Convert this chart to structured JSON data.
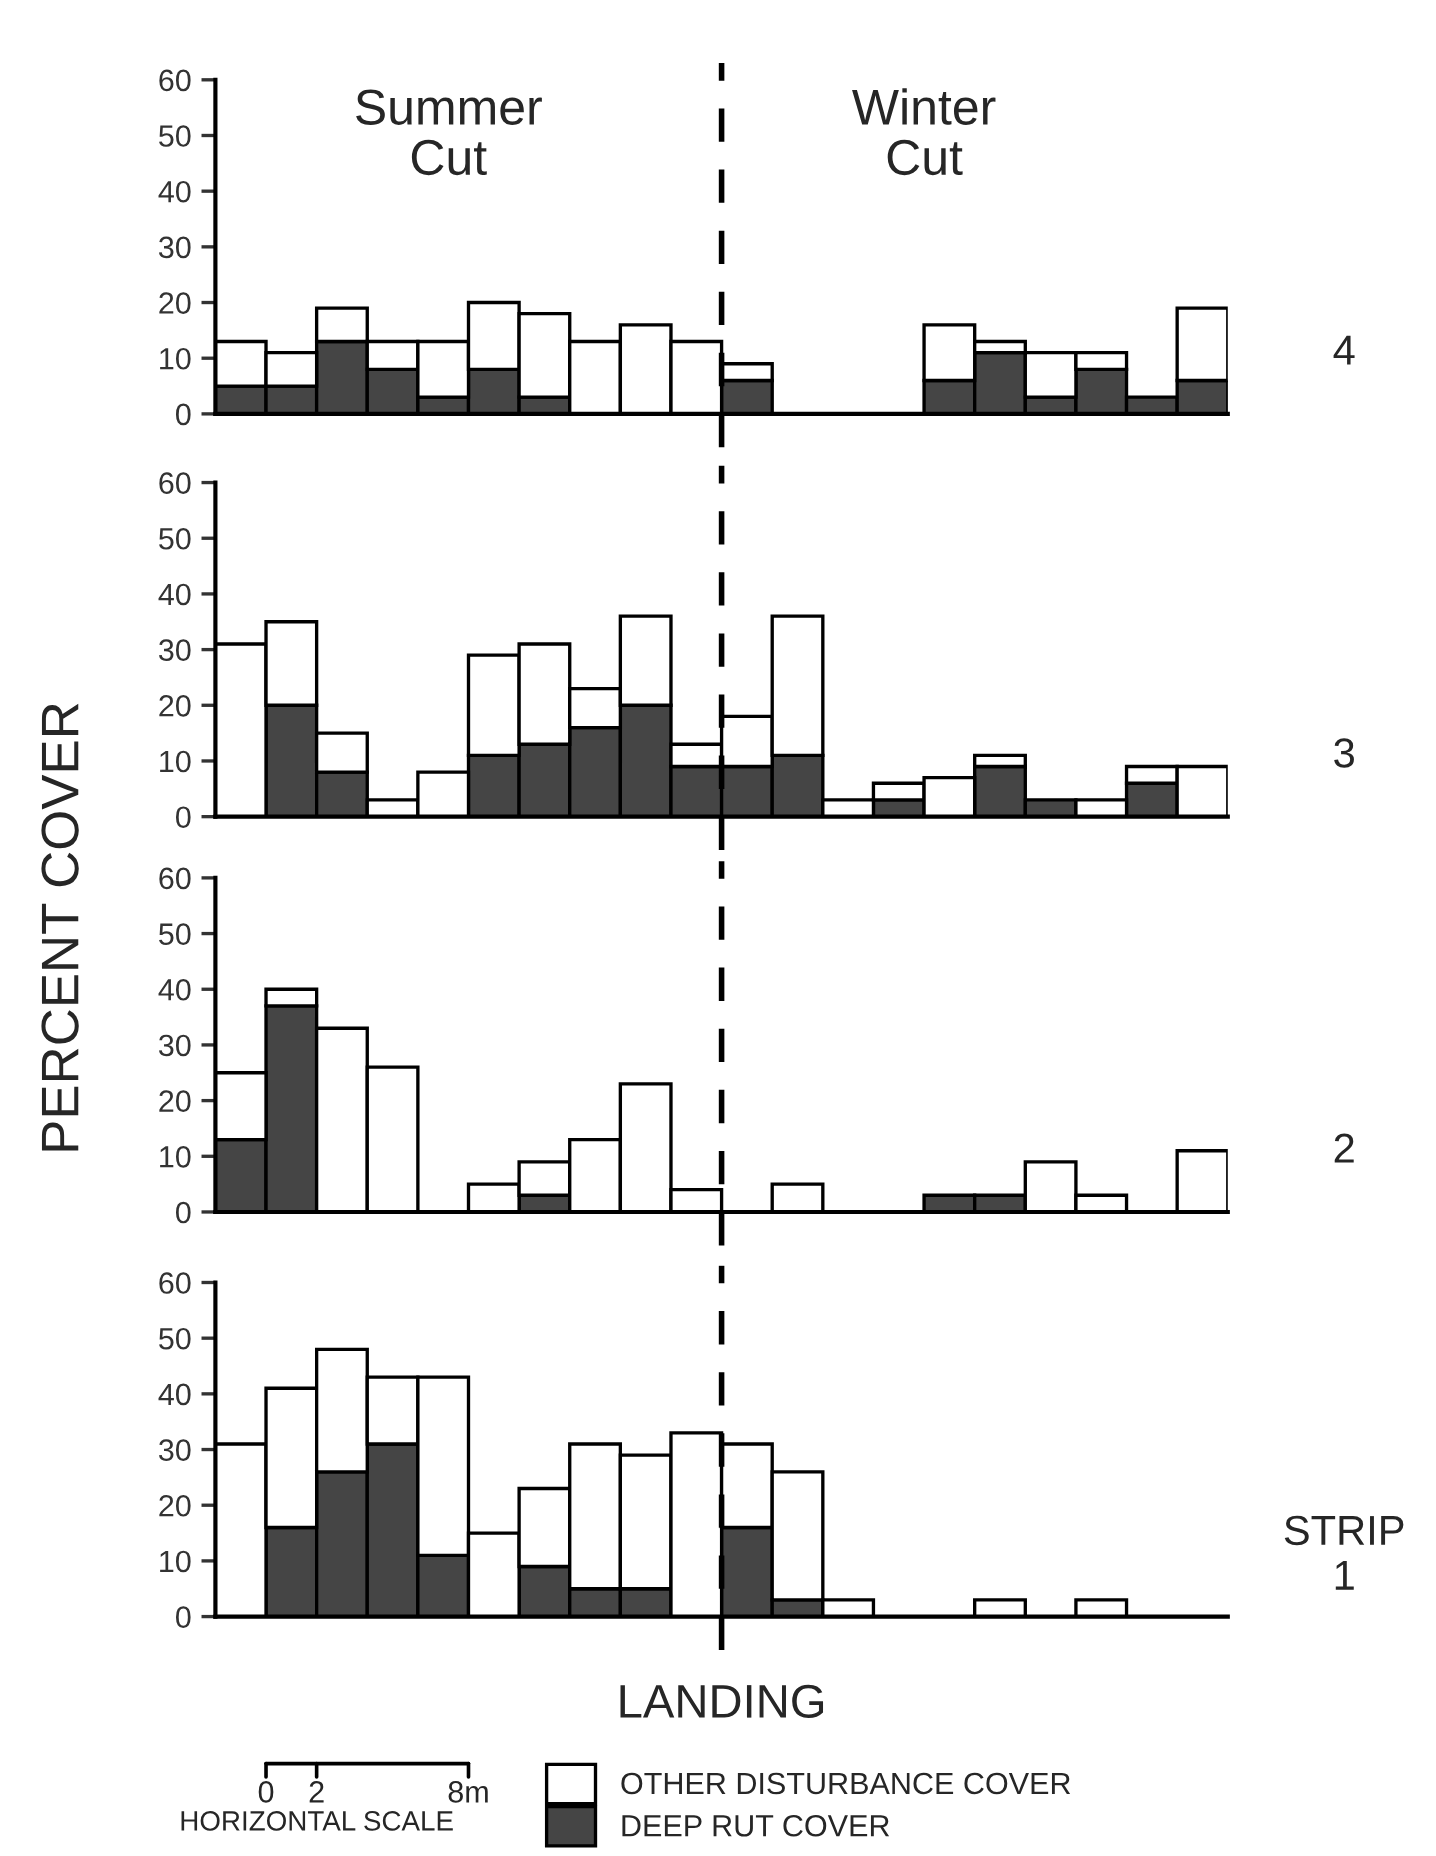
{
  "chart_data": [
    {
      "type": "bar",
      "stacked": true,
      "ylabel": "PERCENT COVER",
      "annotations": [
        "Summer\nCut",
        "Winter\nCut",
        "4"
      ],
      "categories": [
        null,
        null,
        null,
        null,
        null,
        null,
        null,
        null,
        null,
        null,
        null,
        null,
        null,
        null,
        null,
        null,
        null,
        null,
        null,
        null
      ],
      "series": [
        {
          "color": "#454545",
          "values": [
            5,
            5,
            13,
            8,
            3,
            8,
            3,
            null,
            null,
            null,
            6,
            null,
            null,
            null,
            6,
            11,
            3,
            8,
            3,
            6
          ]
        },
        {
          "color": "#ffffff",
          "values": [
            8,
            6,
            6,
            5,
            10,
            12,
            15,
            13,
            16,
            13,
            3,
            null,
            null,
            null,
            10,
            2,
            8,
            3,
            null,
            13
          ]
        }
      ],
      "ylim": [
        0,
        60
      ],
      "yticks": [
        0,
        10,
        20,
        30,
        40,
        50,
        60
      ]
    },
    {
      "type": "bar",
      "stacked": true,
      "annotations": [
        "3"
      ],
      "categories": [
        null,
        null,
        null,
        null,
        null,
        null,
        null,
        null,
        null,
        null,
        null,
        null,
        null,
        null,
        null,
        null,
        null,
        null,
        null,
        null
      ],
      "series": [
        {
          "color": "#454545",
          "values": [
            null,
            20,
            8,
            null,
            null,
            11,
            13,
            16,
            20,
            9,
            9,
            11,
            null,
            3,
            null,
            9,
            3,
            null,
            6,
            null
          ]
        },
        {
          "color": "#ffffff",
          "values": [
            31,
            15,
            7,
            3,
            8,
            18,
            18,
            7,
            16,
            4,
            9,
            25,
            3,
            3,
            7,
            2,
            null,
            3,
            3,
            9
          ]
        }
      ],
      "ylim": [
        0,
        60
      ],
      "yticks": [
        0,
        10,
        20,
        30,
        40,
        50,
        60
      ]
    },
    {
      "type": "bar",
      "stacked": true,
      "annotations": [
        "2"
      ],
      "categories": [
        null,
        null,
        null,
        null,
        null,
        null,
        null,
        null,
        null,
        null,
        null,
        null,
        null,
        null,
        null,
        null,
        null,
        null,
        null,
        null
      ],
      "series": [
        {
          "color": "#454545",
          "values": [
            13,
            37,
            null,
            null,
            null,
            null,
            3,
            null,
            null,
            null,
            null,
            null,
            null,
            null,
            3,
            3,
            null,
            null,
            null,
            null
          ]
        },
        {
          "color": "#ffffff",
          "values": [
            12,
            3,
            33,
            26,
            null,
            5,
            6,
            13,
            23,
            4,
            null,
            5,
            null,
            null,
            null,
            null,
            9,
            3,
            null,
            11
          ]
        }
      ],
      "ylim": [
        0,
        60
      ],
      "yticks": [
        0,
        10,
        20,
        30,
        40,
        50,
        60
      ]
    },
    {
      "type": "bar",
      "stacked": true,
      "legend": "bottom",
      "annotations": [
        "STRIP\n1",
        "LANDING",
        "0",
        "2",
        "8m",
        "HORIZONTAL SCALE"
      ],
      "categories": [
        null,
        null,
        null,
        null,
        null,
        null,
        null,
        null,
        null,
        null,
        null,
        null,
        null,
        null,
        null,
        null,
        null,
        null,
        null,
        null
      ],
      "series": [
        {
          "name": "DEEP RUT COVER",
          "color": "#454545",
          "values": [
            null,
            16,
            26,
            31,
            11,
            null,
            9,
            5,
            5,
            null,
            16,
            3,
            null,
            null,
            null,
            null,
            null,
            null,
            null,
            null
          ]
        },
        {
          "name": "OTHER DISTURBANCE COVER",
          "color": "#ffffff",
          "values": [
            31,
            25,
            22,
            12,
            32,
            15,
            14,
            26,
            24,
            33,
            15,
            23,
            3,
            null,
            null,
            3,
            null,
            3,
            null,
            null
          ]
        }
      ],
      "ylim": [
        0,
        60
      ],
      "yticks": [
        0,
        10,
        20,
        30,
        40,
        50,
        60
      ]
    }
  ]
}
